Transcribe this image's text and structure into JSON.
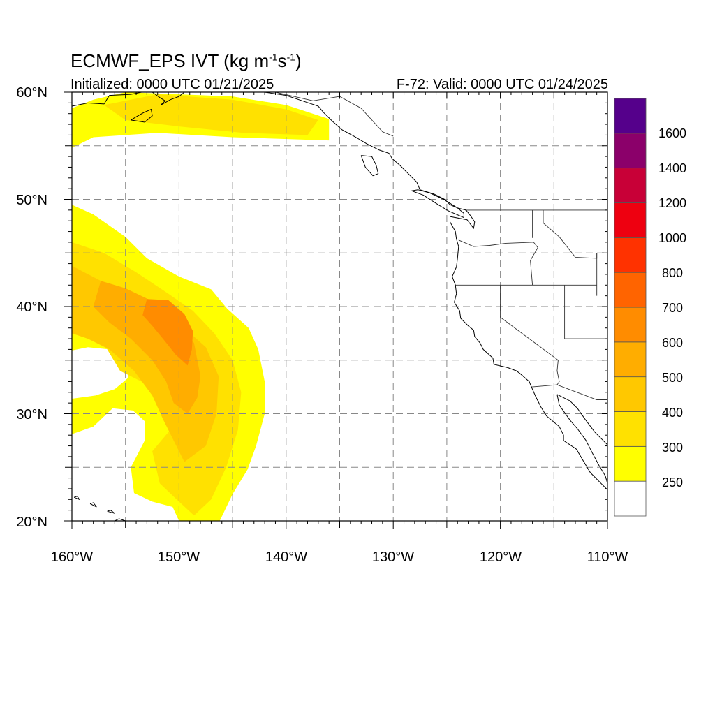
{
  "header": {
    "title_main": "ECMWF_EPS IVT (kg m",
    "title_exp1": "-1",
    "title_mid": "s",
    "title_exp2": "-1",
    "title_end": ")",
    "initialized": "Initialized: 0000 UTC 01/21/2025",
    "valid": "F-72: Valid: 0000 UTC 01/24/2025"
  },
  "map": {
    "lat_labels": [
      "60°N",
      "50°N",
      "40°N",
      "30°N",
      "20°N"
    ],
    "lon_labels": [
      "160°W",
      "150°W",
      "140°W",
      "130°W",
      "120°W",
      "110°W"
    ],
    "lon_range": [
      -160,
      -110
    ],
    "lat_range": [
      20,
      60
    ],
    "gridline_style": "dashed gray every 5 degrees"
  },
  "colorbar": {
    "labels": [
      "1600",
      "1400",
      "1200",
      "1000",
      "800",
      "700",
      "600",
      "500",
      "400",
      "300",
      "250"
    ],
    "colors": [
      "#ffffff",
      "#ffff00",
      "#ffe100",
      "#ffc800",
      "#ffad00",
      "#ff8c00",
      "#ff6400",
      "#ff3200",
      "#ee0010",
      "#c80037",
      "#8b006a",
      "#55008b"
    ]
  },
  "ivt_regions": [
    {
      "level": 250,
      "color": "#ffff00",
      "poly": [
        [
          -160,
          58.5
        ],
        [
          -158,
          59.3
        ],
        [
          -155,
          60
        ],
        [
          -145,
          59.6
        ],
        [
          -140,
          58.8
        ],
        [
          -136,
          57.5
        ],
        [
          -136,
          55.5
        ],
        [
          -145,
          55.8
        ],
        [
          -152,
          56.2
        ],
        [
          -158,
          55.8
        ],
        [
          -160,
          54.8
        ]
      ]
    },
    {
      "level": 300,
      "color": "#ffe100",
      "poly": [
        [
          -157,
          58.8
        ],
        [
          -152,
          59.8
        ],
        [
          -145,
          59.3
        ],
        [
          -140,
          58.4
        ],
        [
          -137,
          57.4
        ],
        [
          -138,
          56
        ],
        [
          -144,
          56.2
        ],
        [
          -150,
          56.8
        ],
        [
          -155,
          57.4
        ]
      ]
    },
    {
      "level": 250,
      "color": "#ffff00",
      "poly": [
        [
          -160,
          49.5
        ],
        [
          -158,
          48.6
        ],
        [
          -155,
          46.5
        ],
        [
          -153,
          44.5
        ],
        [
          -150,
          42.8
        ],
        [
          -147,
          41.6
        ],
        [
          -145.5,
          39.8
        ],
        [
          -143.5,
          38
        ],
        [
          -142.6,
          36
        ],
        [
          -142,
          33
        ],
        [
          -142,
          30
        ],
        [
          -142.8,
          27
        ],
        [
          -143.6,
          24.8
        ],
        [
          -145,
          22.5
        ],
        [
          -146.2,
          20
        ],
        [
          -150,
          20
        ],
        [
          -150.6,
          21.3
        ],
        [
          -152.5,
          21.8
        ],
        [
          -154.2,
          22.6
        ],
        [
          -154.5,
          25
        ],
        [
          -153.2,
          27.5
        ],
        [
          -153.2,
          29.3
        ],
        [
          -154.3,
          30.3
        ],
        [
          -156.2,
          30.5
        ],
        [
          -158,
          28.8
        ],
        [
          -160,
          28.1
        ],
        [
          -160,
          31.4
        ],
        [
          -157.8,
          31.7
        ],
        [
          -156,
          32.3
        ],
        [
          -154.8,
          33.3
        ],
        [
          -154.6,
          35
        ],
        [
          -156.5,
          36
        ],
        [
          -158.5,
          36.2
        ],
        [
          -160,
          35.9
        ]
      ]
    },
    {
      "level": 300,
      "color": "#ffe100",
      "poly": [
        [
          -160,
          46
        ],
        [
          -157,
          45
        ],
        [
          -154,
          43.2
        ],
        [
          -151,
          41.2
        ],
        [
          -148.7,
          39.6
        ],
        [
          -146.7,
          37.5
        ],
        [
          -145,
          35
        ],
        [
          -144.2,
          32
        ],
        [
          -144.5,
          28.5
        ],
        [
          -145.6,
          25
        ],
        [
          -147,
          22
        ],
        [
          -148.6,
          20.5
        ],
        [
          -150,
          21.8
        ],
        [
          -151.8,
          23.5
        ],
        [
          -152.5,
          26.5
        ],
        [
          -150.8,
          28.5
        ],
        [
          -151.2,
          31.5
        ],
        [
          -153.5,
          33
        ],
        [
          -155.5,
          34
        ],
        [
          -157,
          36.5
        ],
        [
          -160,
          38
        ]
      ]
    },
    {
      "level": 400,
      "color": "#ffc800",
      "poly": [
        [
          -160,
          43.8
        ],
        [
          -157.5,
          42.5
        ],
        [
          -154.5,
          41
        ],
        [
          -152,
          39.5
        ],
        [
          -149.5,
          38
        ],
        [
          -147.5,
          36.2
        ],
        [
          -146.3,
          33.5
        ],
        [
          -146.5,
          30
        ],
        [
          -147.5,
          27
        ],
        [
          -149.5,
          25.5
        ],
        [
          -150.5,
          27.5
        ],
        [
          -151.5,
          29.5
        ],
        [
          -152.5,
          31.7
        ],
        [
          -154.2,
          34
        ],
        [
          -156.5,
          36
        ],
        [
          -158.5,
          37
        ],
        [
          -160,
          37.5
        ]
      ]
    },
    {
      "level": 500,
      "color": "#ffad00",
      "poly": [
        [
          -157.3,
          42.4
        ],
        [
          -155,
          41.7
        ],
        [
          -152.5,
          40.5
        ],
        [
          -150.3,
          39
        ],
        [
          -148.6,
          36.6
        ],
        [
          -148,
          33.5
        ],
        [
          -148.3,
          31.5
        ],
        [
          -149.2,
          30
        ],
        [
          -150.5,
          31
        ],
        [
          -151.2,
          33
        ],
        [
          -152.5,
          35
        ],
        [
          -154.5,
          37
        ],
        [
          -156.5,
          38.5
        ],
        [
          -158,
          40
        ]
      ]
    },
    {
      "level": 600,
      "color": "#ff8c00",
      "poly": [
        [
          -153,
          40.7
        ],
        [
          -151,
          40.6
        ],
        [
          -149.5,
          39.3
        ],
        [
          -148.7,
          37.7
        ],
        [
          -148.8,
          36
        ],
        [
          -149.2,
          34.5
        ],
        [
          -150.3,
          35.5
        ],
        [
          -151.5,
          37
        ],
        [
          -152.5,
          38.2
        ],
        [
          -153.4,
          39.2
        ]
      ]
    }
  ],
  "state_borders": [
    {
      "name": "north-border",
      "line": [
        [
          -123.3,
          49
        ],
        [
          -110,
          49
        ]
      ]
    },
    {
      "name": "wa-or",
      "line": [
        [
          -123.9,
          46.2
        ],
        [
          -122.5,
          45.6
        ],
        [
          -121,
          45.7
        ],
        [
          -119.5,
          45.9
        ],
        [
          -116.9,
          46
        ]
      ]
    },
    {
      "name": "wa-id",
      "line": [
        [
          -117,
          49
        ],
        [
          -117,
          46.4
        ]
      ]
    },
    {
      "name": "or-id",
      "line": [
        [
          -116.9,
          46
        ],
        [
          -116.5,
          45.5
        ],
        [
          -117.2,
          44.3
        ],
        [
          -117,
          42
        ]
      ]
    },
    {
      "name": "or-ca-nv",
      "line": [
        [
          -124.2,
          42
        ],
        [
          -111,
          42
        ]
      ]
    },
    {
      "name": "id-wy",
      "line": [
        [
          -111,
          45
        ],
        [
          -111,
          41
        ]
      ]
    },
    {
      "name": "id-mt",
      "line": [
        [
          -116,
          49
        ],
        [
          -116,
          47.8
        ],
        [
          -114.5,
          46.5
        ],
        [
          -113,
          44.6
        ],
        [
          -111,
          44.5
        ],
        [
          -111,
          45
        ]
      ]
    },
    {
      "name": "ca-nv",
      "line": [
        [
          -120,
          42
        ],
        [
          -120,
          39
        ],
        [
          -114.6,
          35
        ]
      ]
    },
    {
      "name": "nv-ut",
      "line": [
        [
          -114,
          42
        ],
        [
          -114,
          37
        ]
      ]
    },
    {
      "name": "ut-az",
      "line": [
        [
          -114,
          37
        ],
        [
          -110,
          37
        ]
      ]
    },
    {
      "name": "az-ca",
      "line": [
        [
          -114.6,
          35
        ],
        [
          -114.7,
          34
        ],
        [
          -114.5,
          33
        ],
        [
          -114.7,
          32.7
        ]
      ]
    },
    {
      "name": "us-mexico",
      "line": [
        [
          -117.1,
          32.5
        ],
        [
          -114.7,
          32.7
        ],
        [
          -111,
          31.3
        ],
        [
          -110,
          31.3
        ]
      ]
    },
    {
      "name": "canada-alaska",
      "line": [
        [
          -141,
          60
        ],
        [
          -137.5,
          59.2
        ],
        [
          -135,
          59.6
        ],
        [
          -133,
          58.5
        ],
        [
          -131,
          56.3
        ],
        [
          -130,
          55.9
        ]
      ]
    }
  ],
  "coastlines": [
    {
      "name": "alaska-coast",
      "line": [
        [
          -160,
          58.7
        ],
        [
          -158.5,
          59
        ],
        [
          -157,
          58.9
        ],
        [
          -156.5,
          59.7
        ],
        [
          -154.5,
          59.8
        ],
        [
          -153.5,
          60
        ]
      ]
    },
    {
      "name": "kenai-coast",
      "line": [
        [
          -152.5,
          60
        ],
        [
          -151.8,
          59.5
        ],
        [
          -151.3,
          59.2
        ],
        [
          -151.7,
          58.8
        ],
        [
          -150.8,
          59.3
        ],
        [
          -150,
          59.6
        ],
        [
          -149.5,
          60
        ]
      ]
    },
    {
      "name": "kodiak-island",
      "line": [
        [
          -154.5,
          57.4
        ],
        [
          -153.2,
          57.2
        ],
        [
          -152.5,
          57.8
        ],
        [
          -152.6,
          58.4
        ],
        [
          -153.3,
          58.1
        ],
        [
          -154,
          57.7
        ],
        [
          -154.5,
          57.4
        ]
      ]
    },
    {
      "name": "gulf-of-alaska-coast",
      "line": [
        [
          -146,
          60
        ],
        [
          -144,
          60.2
        ],
        [
          -142,
          60
        ],
        [
          -140,
          59.7
        ],
        [
          -138.5,
          59.2
        ],
        [
          -137,
          58.7
        ],
        [
          -136.5,
          58.1
        ],
        [
          -135.7,
          57.3
        ],
        [
          -134.8,
          56.5
        ],
        [
          -133.5,
          55.8
        ],
        [
          -132.5,
          55.2
        ],
        [
          -131.3,
          54.6
        ],
        [
          -130.4,
          54.3
        ],
        [
          -130.1,
          53.8
        ],
        [
          -129.4,
          53.2
        ],
        [
          -128.4,
          52.2
        ],
        [
          -127.8,
          51.6
        ],
        [
          -127.5,
          50.9
        ],
        [
          -126.2,
          50.5
        ],
        [
          -125.2,
          50
        ],
        [
          -124.7,
          49.5
        ],
        [
          -124,
          49.2
        ],
        [
          -123.2,
          49
        ]
      ]
    },
    {
      "name": "haida-gwaii",
      "line": [
        [
          -133,
          54.1
        ],
        [
          -132,
          54
        ],
        [
          -131.6,
          53.2
        ],
        [
          -131.4,
          52.4
        ],
        [
          -131.9,
          52.2
        ],
        [
          -132.6,
          53
        ],
        [
          -133,
          54.1
        ]
      ]
    },
    {
      "name": "vancouver-island",
      "line": [
        [
          -128.3,
          50.8
        ],
        [
          -127.2,
          50.4
        ],
        [
          -125.8,
          49.5
        ],
        [
          -124.8,
          48.9
        ],
        [
          -123.4,
          48.3
        ],
        [
          -123.4,
          48.7
        ],
        [
          -124,
          49.2
        ],
        [
          -125.3,
          50
        ],
        [
          -126.6,
          50.6
        ],
        [
          -127.7,
          50.9
        ],
        [
          -128.3,
          50.8
        ]
      ]
    },
    {
      "name": "us-west-coast",
      "line": [
        [
          -123.2,
          49
        ],
        [
          -122.8,
          48.5
        ],
        [
          -122.4,
          47.9
        ],
        [
          -122.5,
          47.3
        ],
        [
          -122.8,
          47.7
        ],
        [
          -123.1,
          48.1
        ],
        [
          -124.7,
          48.4
        ],
        [
          -124.7,
          47.9
        ],
        [
          -124.2,
          47
        ],
        [
          -124.1,
          46.3
        ],
        [
          -123.9,
          45.6
        ],
        [
          -124,
          44.5
        ],
        [
          -124.1,
          43.7
        ],
        [
          -124.5,
          42.8
        ],
        [
          -124.2,
          42
        ],
        [
          -124.1,
          41.2
        ],
        [
          -124.3,
          40.4
        ],
        [
          -123.8,
          39.6
        ],
        [
          -123.7,
          38.9
        ],
        [
          -123,
          38.2
        ],
        [
          -122.5,
          37.8
        ],
        [
          -122.4,
          37.2
        ],
        [
          -121.9,
          36.6
        ],
        [
          -121.6,
          36
        ],
        [
          -120.7,
          35.2
        ],
        [
          -120.6,
          34.6
        ],
        [
          -119.3,
          34.3
        ],
        [
          -118.5,
          34
        ],
        [
          -118.1,
          33.7
        ],
        [
          -117.3,
          33
        ],
        [
          -117.1,
          32.5
        ],
        [
          -116.7,
          31.6
        ],
        [
          -116.2,
          30.6
        ],
        [
          -115.7,
          29.8
        ],
        [
          -114.5,
          28.8
        ],
        [
          -114.1,
          28
        ],
        [
          -114.1,
          27.5
        ],
        [
          -112.9,
          26.7
        ],
        [
          -112.2,
          25.5
        ],
        [
          -111.6,
          24.5
        ],
        [
          -110.6,
          23.5
        ],
        [
          -110,
          22.9
        ]
      ]
    },
    {
      "name": "baja-gulf-coast",
      "line": [
        [
          -114.7,
          31.8
        ],
        [
          -114.5,
          30.8
        ],
        [
          -113.5,
          29.4
        ],
        [
          -112.8,
          28.6
        ],
        [
          -112,
          27.5
        ],
        [
          -111.5,
          26.5
        ],
        [
          -110.8,
          25.2
        ],
        [
          -110.2,
          24.2
        ],
        [
          -110,
          23.5
        ]
      ]
    },
    {
      "name": "sonora-coast",
      "line": [
        [
          -114.7,
          31.8
        ],
        [
          -113.5,
          31.2
        ],
        [
          -112.8,
          30.5
        ],
        [
          -112.1,
          29.5
        ],
        [
          -111.2,
          28.3
        ],
        [
          -110.5,
          27.6
        ],
        [
          -110,
          27.1
        ]
      ]
    },
    {
      "name": "hawaii-big-island",
      "line": [
        [
          -156,
          20
        ],
        [
          -155.3,
          19.7
        ],
        [
          -155,
          20
        ],
        [
          -155.6,
          20.2
        ],
        [
          -156,
          20
        ]
      ]
    },
    {
      "name": "maui",
      "line": [
        [
          -156.7,
          20.9
        ],
        [
          -156,
          20.7
        ],
        [
          -156.4,
          21
        ],
        [
          -156.7,
          20.9
        ]
      ]
    },
    {
      "name": "oahu",
      "line": [
        [
          -158.3,
          21.6
        ],
        [
          -157.7,
          21.3
        ],
        [
          -158,
          21.7
        ],
        [
          -158.3,
          21.6
        ]
      ]
    },
    {
      "name": "kauai",
      "line": [
        [
          -159.8,
          22.2
        ],
        [
          -159.3,
          22
        ],
        [
          -159.5,
          22.3
        ],
        [
          -159.8,
          22.2
        ]
      ]
    }
  ]
}
